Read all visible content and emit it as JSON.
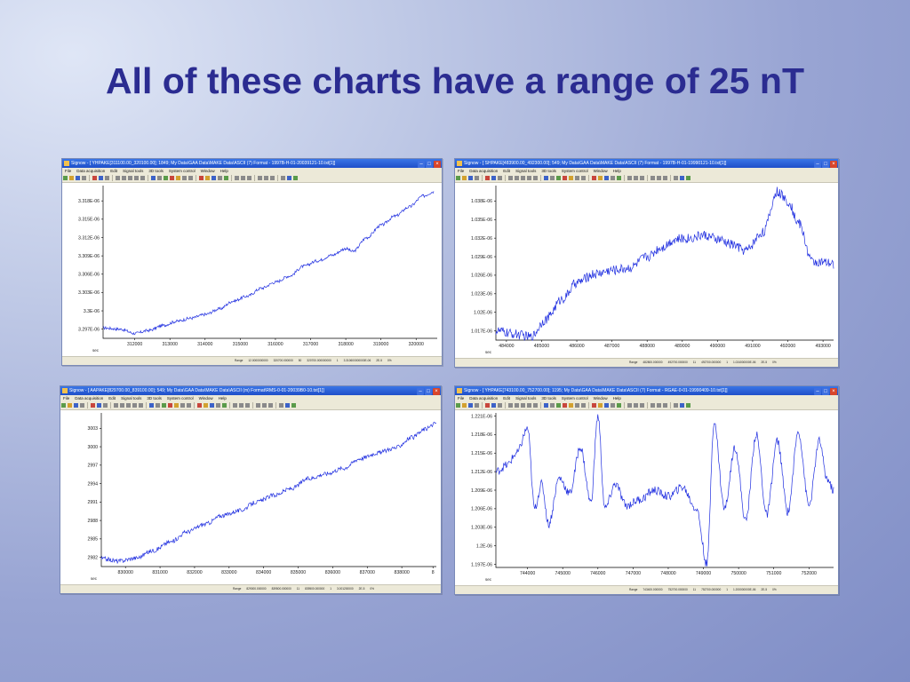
{
  "slide": {
    "title": "All of these charts have a range of 25 nT"
  },
  "app": {
    "menu": [
      "File",
      "Data acquisition",
      "Edit",
      "Signal tools",
      "3D tools",
      "System control",
      "Window",
      "Help"
    ],
    "status": {
      "range_label": "Range"
    },
    "accent_color": "#2458d6",
    "line_color": "#1f2ee0"
  },
  "windows": [
    {
      "id": "top-left",
      "title": "Signow - [ YHPAKE[311100.00_320100.00]; 1849; My Data\\GAA Data\\MAKE Data\\ASCII (7) Format - 1997B-H-01-20039121-10.txt[1]]",
      "status_fields": [
        "12.0000000000",
        "320700.000000",
        "50",
        "320700.000000000",
        "1",
        "3.310600000000E-06",
        "2E-5",
        "0%"
      ]
    },
    {
      "id": "top-right",
      "title": "Signow - [ SHPAKE[483900.00_492300.00]; 549; My Data\\GAA Data\\MAKE Data\\ASCII (7) Format - 1997B-H-01-19990121-10.txt[1]]",
      "status_fields": [
        "482800.000000",
        "492700.000000",
        "11",
        "492700.000000",
        "1",
        "1.024000000E-06",
        "2E-5",
        "0%"
      ]
    },
    {
      "id": "bottom-left",
      "title": "Signow - [ AAPAKE[829700.00_839100.00]; 549; My Data\\GAA Data\\MAKE Data\\ASCII (m) Format\\RMS-0-01-20039B0-10.txt[1]]",
      "status_fields": [
        "829000.000000",
        "839500.000000",
        "11",
        "839500.000000",
        "1",
        "3.001200000",
        "2E-5",
        "0%"
      ]
    },
    {
      "id": "bottom-right",
      "title": "Signow - [ YHPAKE[743100.00_752700.00]; 1195; My Data\\GAA Data\\MAKE Data\\ASCII (7) Format - RGAE-0-01-19990409-10.txt[1]]",
      "status_fields": [
        "743400.000000",
        "752700.000000",
        "11",
        "752700.000000",
        "1",
        "1.200000000E-06",
        "2E-5",
        "0%"
      ]
    }
  ],
  "chart_data": [
    {
      "type": "line",
      "window": "top-left",
      "xlabel": "sec",
      "xticks": [
        "312000",
        "313000",
        "314000",
        "315000",
        "316000",
        "317000",
        "318000",
        "319000",
        "320000"
      ],
      "yticks": [
        "3.318E-06",
        "3.315E-06",
        "3.312E-06",
        "3.309E-06",
        "3.306E-06",
        "3.303E-06",
        "3.3E-06",
        "3.297E-06"
      ],
      "xlim": [
        311100,
        320600
      ],
      "ylim": [
        3.2955e-06,
        3.3205e-06
      ],
      "x": [
        311100,
        311600,
        312000,
        312400,
        312800,
        313200,
        313600,
        314000,
        314400,
        314800,
        315200,
        315600,
        316000,
        316400,
        316800,
        317200,
        317600,
        318000,
        318200,
        318600,
        319000,
        319400,
        319800,
        320200,
        320500
      ],
      "y": [
        3.2972e-06,
        3.297e-06,
        3.2963e-06,
        3.2968e-06,
        3.2976e-06,
        3.2983e-06,
        3.2988e-06,
        3.2994e-06,
        3.3003e-06,
        3.3016e-06,
        3.3024e-06,
        3.3037e-06,
        3.3047e-06,
        3.3057e-06,
        3.3073e-06,
        3.3082e-06,
        3.3091e-06,
        3.3102e-06,
        3.3097e-06,
        3.312e-06,
        3.314e-06,
        3.3155e-06,
        3.317e-06,
        3.3188e-06,
        3.3195e-06
      ],
      "grid": false,
      "legend": "none"
    },
    {
      "type": "line",
      "window": "top-right",
      "xlabel": "sec",
      "xticks": [
        "484000",
        "485000",
        "486000",
        "487000",
        "488000",
        "489000",
        "490000",
        "491000",
        "492000",
        "493000"
      ],
      "yticks": [
        "1.038E-06",
        "1.035E-06",
        "1.032E-06",
        "1.029E-06",
        "1.026E-06",
        "1.023E-06",
        "1.02E-06",
        "1.017E-06"
      ],
      "xlim": [
        483700,
        493300
      ],
      "ylim": [
        1.0155e-06,
        1.0405e-06
      ],
      "x": [
        483700,
        484200,
        484700,
        485100,
        485600,
        486000,
        486500,
        487000,
        487500,
        488000,
        488400,
        488800,
        489200,
        489600,
        490000,
        490400,
        490800,
        491300,
        491700,
        492000,
        492300,
        492700,
        493300
      ],
      "y": [
        1.017e-06,
        1.0165e-06,
        1.016e-06,
        1.0188e-06,
        1.0222e-06,
        1.0248e-06,
        1.0262e-06,
        1.0268e-06,
        1.0272e-06,
        1.029e-06,
        1.0305e-06,
        1.0318e-06,
        1.032e-06,
        1.0325e-06,
        1.0318e-06,
        1.031e-06,
        1.03e-06,
        1.033e-06,
        1.0395e-06,
        1.038e-06,
        1.0345e-06,
        1.0282e-06,
        1.0278e-06
      ],
      "grid": false,
      "legend": "none"
    },
    {
      "type": "line",
      "window": "bottom-left",
      "xlabel": "sec",
      "xticks": [
        "830000",
        "831000",
        "832000",
        "833000",
        "834000",
        "835000",
        "836000",
        "837000",
        "838000",
        "8"
      ],
      "yticks": [
        "3003",
        "3000",
        "2997",
        "2994",
        "2991",
        "2988",
        "2985",
        "2982"
      ],
      "xlim": [
        829300,
        839000
      ],
      "ylim": [
        2980.5,
        3005.5
      ],
      "x": [
        829300,
        829800,
        830300,
        830800,
        831300,
        831800,
        832300,
        832800,
        833300,
        833800,
        834300,
        834800,
        835300,
        835800,
        836300,
        836800,
        837300,
        837800,
        838300,
        838700,
        839000
      ],
      "y": [
        2981.8,
        2981.4,
        2981.9,
        2983.1,
        2984.5,
        2986.2,
        2987.4,
        2988.8,
        2989.6,
        2991.0,
        2992.1,
        2993.2,
        2994.8,
        2995.6,
        2996.5,
        2998.1,
        2999.0,
        2999.8,
        3001.5,
        3002.9,
        3003.9
      ],
      "grid": false,
      "legend": "none"
    },
    {
      "type": "line",
      "window": "bottom-right",
      "xlabel": "sec",
      "xticks": [
        "744000",
        "745000",
        "746000",
        "747000",
        "748000",
        "749000",
        "750000",
        "751000",
        "752000"
      ],
      "yticks": [
        "1.221E-06",
        "1.218E-06",
        "1.215E-06",
        "1.212E-06",
        "1.209E-06",
        "1.206E-06",
        "1.203E-06",
        "1.2E-06",
        "1.197E-06"
      ],
      "xlim": [
        743100,
        752700
      ],
      "ylim": [
        1.1965e-06,
        1.2215e-06
      ],
      "x": [
        743100,
        743400,
        743700,
        744000,
        744200,
        744400,
        744600,
        744900,
        745200,
        745500,
        745800,
        746000,
        746200,
        746500,
        746800,
        747200,
        747600,
        748000,
        748400,
        748800,
        749100,
        749300,
        749600,
        749900,
        750200,
        750500,
        750800,
        751100,
        751400,
        751700,
        752000,
        752300,
        752500,
        752700
      ],
      "y": [
        1.212e-06,
        1.213e-06,
        1.215e-06,
        1.219e-06,
        1.206e-06,
        1.21e-06,
        1.2035e-06,
        1.211e-06,
        1.2085e-06,
        1.216e-06,
        1.207e-06,
        1.221e-06,
        1.206e-06,
        1.21e-06,
        1.2065e-06,
        1.2075e-06,
        1.209e-06,
        1.208e-06,
        1.2095e-06,
        1.206e-06,
        1.197e-06,
        1.22e-06,
        1.206e-06,
        1.216e-06,
        1.204e-06,
        1.218e-06,
        1.205e-06,
        1.217e-06,
        1.2055e-06,
        1.2185e-06,
        1.2065e-06,
        1.217e-06,
        1.211e-06,
        1.209e-06
      ],
      "grid": false,
      "legend": "none"
    }
  ]
}
